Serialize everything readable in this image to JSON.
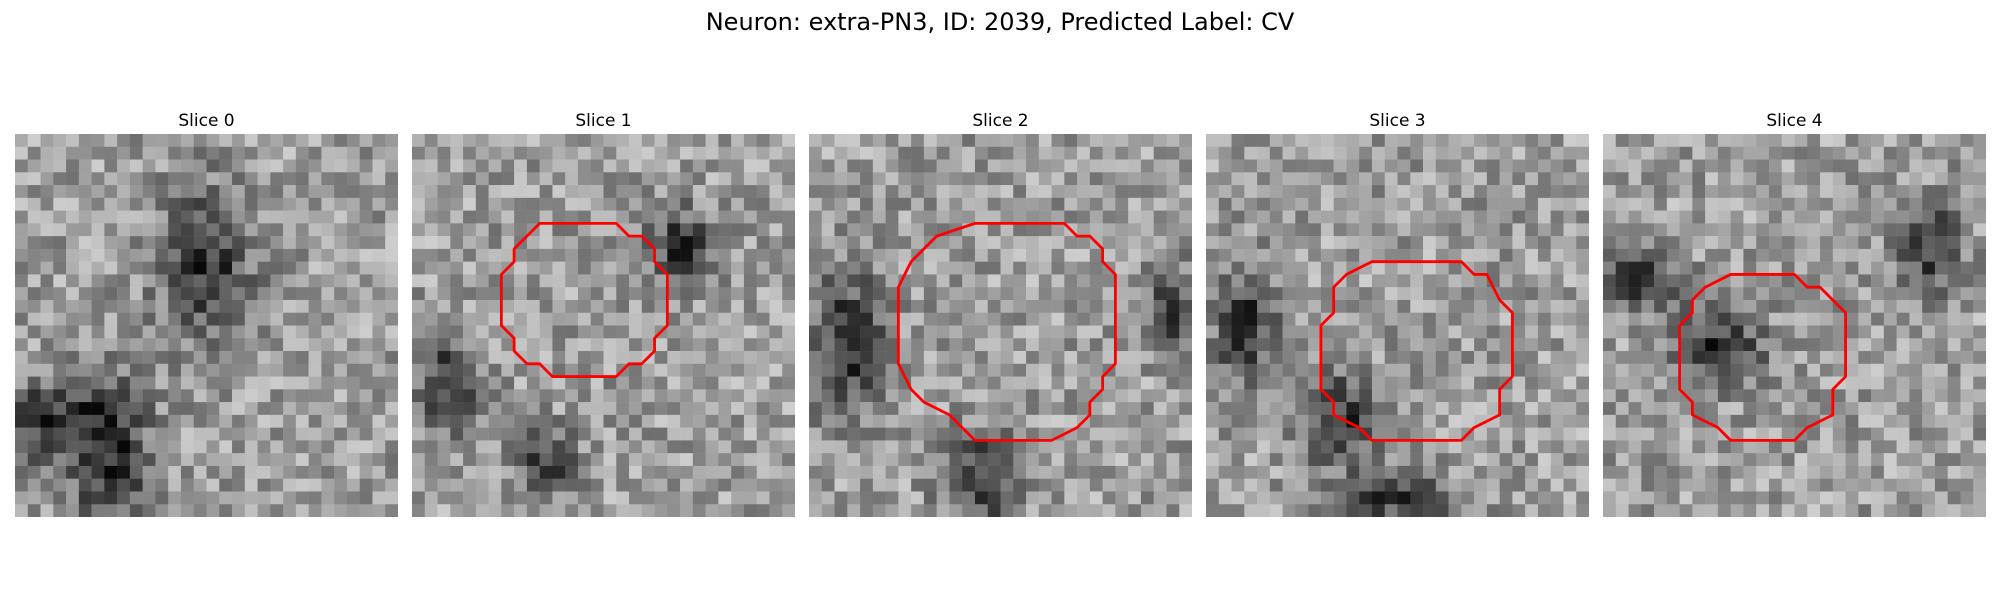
{
  "figure": {
    "title": "Neuron: extra-PN3, ID: 2039, Predicted Label: CV",
    "contour_color": "#ff0000",
    "colormap": "gray",
    "grid_size": 30
  },
  "slices": [
    {
      "label": "Slice 0",
      "has_contour": false,
      "dark_regions": [
        [
          0.25,
          0.85,
          0.1,
          0.22
        ],
        [
          0.5,
          0.35,
          0.12,
          0.2
        ],
        [
          0.08,
          0.75,
          0.15,
          0.1
        ]
      ]
    },
    {
      "label": "Slice 1",
      "has_contour": true,
      "dark_regions": [
        [
          0.1,
          0.65,
          0.08,
          0.12
        ],
        [
          0.35,
          0.85,
          0.08,
          0.08
        ],
        [
          0.7,
          0.3,
          0.08,
          0.1
        ]
      ]
    },
    {
      "label": "Slice 2",
      "has_contour": true,
      "dark_regions": [
        [
          0.1,
          0.55,
          0.1,
          0.2
        ],
        [
          0.45,
          0.9,
          0.1,
          0.12
        ],
        [
          0.95,
          0.45,
          0.06,
          0.1
        ]
      ]
    },
    {
      "label": "Slice 3",
      "has_contour": true,
      "dark_regions": [
        [
          0.35,
          0.75,
          0.1,
          0.12
        ],
        [
          0.1,
          0.5,
          0.08,
          0.15
        ],
        [
          0.5,
          0.95,
          0.15,
          0.06
        ]
      ]
    },
    {
      "label": "Slice 4",
      "has_contour": true,
      "dark_regions": [
        [
          0.1,
          0.38,
          0.1,
          0.08
        ],
        [
          0.85,
          0.3,
          0.08,
          0.12
        ],
        [
          0.3,
          0.55,
          0.12,
          0.1
        ]
      ]
    }
  ]
}
